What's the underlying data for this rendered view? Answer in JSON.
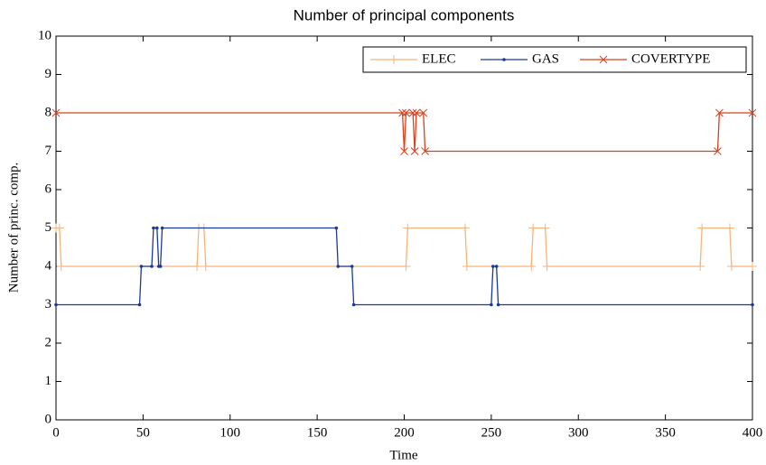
{
  "chart_data": {
    "type": "line",
    "title": "Number of principal components",
    "x_label": "Time",
    "y_label": "Number of princ. comp.",
    "xlim": [
      0,
      400
    ],
    "ylim": [
      0,
      10
    ],
    "xticks": [
      0,
      50,
      100,
      150,
      200,
      250,
      300,
      350,
      400
    ],
    "yticks": [
      0,
      1,
      2,
      3,
      4,
      5,
      6,
      7,
      8,
      9,
      10
    ],
    "grid": false,
    "legend": "upper right",
    "series": [
      {
        "name": "ELEC",
        "color": "#f7b47a",
        "marker": "plus",
        "x": [
          0,
          2,
          3,
          81,
          82,
          85,
          86,
          201,
          202,
          235,
          236,
          273,
          274,
          281,
          282,
          370,
          371,
          387,
          388,
          400
        ],
        "values": [
          5,
          5,
          4,
          4,
          5,
          5,
          4,
          4,
          5,
          5,
          4,
          4,
          5,
          5,
          4,
          4,
          5,
          5,
          4,
          4
        ]
      },
      {
        "name": "GAS",
        "color": "#1c3a94",
        "marker": "dot",
        "x": [
          0,
          48,
          49,
          55,
          56,
          58,
          59,
          60,
          61,
          161,
          162,
          170,
          171,
          250,
          251,
          253,
          254,
          400
        ],
        "values": [
          3,
          3,
          4,
          4,
          5,
          5,
          4,
          4,
          5,
          5,
          4,
          4,
          3,
          3,
          4,
          4,
          3,
          3
        ]
      },
      {
        "name": "COVERTYPE",
        "color": "#d8411f",
        "marker": "cross",
        "x": [
          0,
          199,
          200,
          201,
          205,
          206,
          207,
          211,
          212,
          380,
          381,
          400
        ],
        "values": [
          8,
          8,
          7,
          8,
          8,
          7,
          8,
          8,
          7,
          7,
          8,
          8
        ]
      }
    ]
  }
}
